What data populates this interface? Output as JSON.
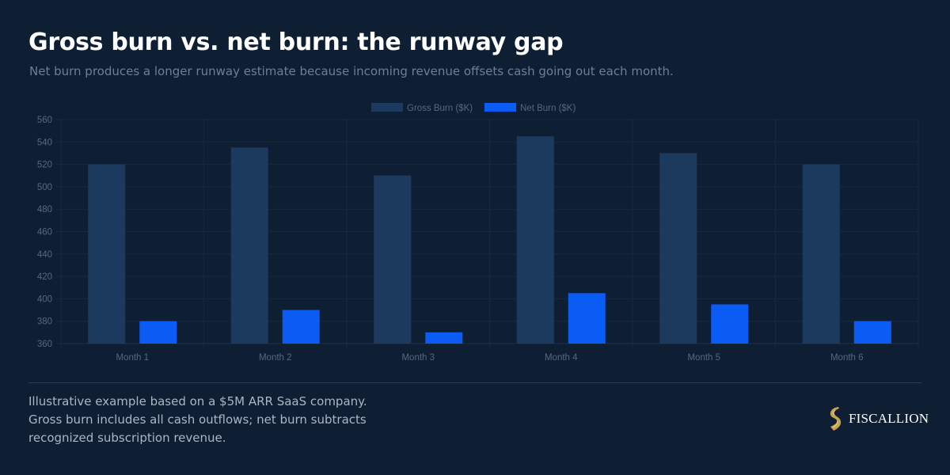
{
  "header": {
    "title": "Gross burn vs. net burn: the runway gap",
    "subtitle": "Net burn produces a longer runway estimate because incoming revenue offsets cash going out each month."
  },
  "footer": {
    "note": "Illustrative example based on a $5M ARR SaaS company. Gross burn includes all cash outflows; net burn subtracts recognized subscription revenue.",
    "brand": "FISCALLION"
  },
  "chart_data": {
    "type": "bar",
    "categories": [
      "Month 1",
      "Month 2",
      "Month 3",
      "Month 4",
      "Month 5",
      "Month 6"
    ],
    "series": [
      {
        "name": "Gross Burn ($K)",
        "values": [
          520,
          535,
          510,
          545,
          530,
          520
        ],
        "color": "#1b3a5e"
      },
      {
        "name": "Net Burn ($K)",
        "values": [
          380,
          390,
          370,
          405,
          395,
          380
        ],
        "color": "#0a5cf5"
      }
    ],
    "ylim": [
      360,
      560
    ],
    "yticks": [
      360,
      380,
      400,
      420,
      440,
      460,
      480,
      500,
      520,
      540,
      560
    ],
    "grid": true,
    "legend": "top-center"
  }
}
